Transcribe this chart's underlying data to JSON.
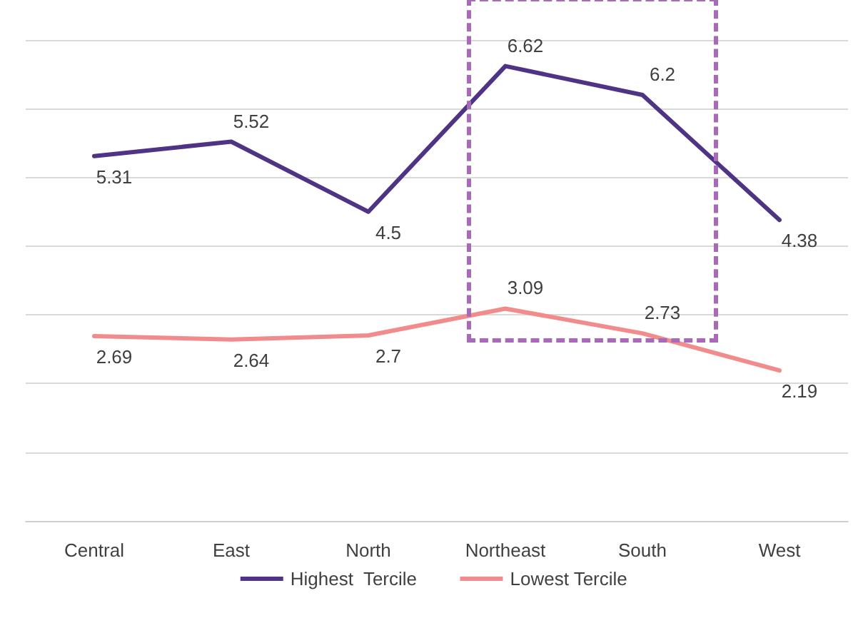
{
  "chart_data": {
    "type": "line",
    "categories": [
      "Central",
      "East",
      "North",
      "Northeast",
      "South",
      "West"
    ],
    "series": [
      {
        "name": "Highest  Tercile",
        "color": "#4f3385",
        "values": [
          5.31,
          5.52,
          4.5,
          6.62,
          6.2,
          4.38
        ]
      },
      {
        "name": "Lowest Tercile",
        "color": "#f28b8b",
        "values": [
          2.69,
          2.64,
          2.7,
          3.09,
          2.73,
          2.19
        ]
      }
    ],
    "ylim": [
      0,
      7
    ],
    "yticks": [
      {
        "value": 0,
        "label": null
      },
      {
        "value": 1,
        "label": null
      },
      {
        "value": 2,
        "label": null
      },
      {
        "value": 3,
        "label": null
      },
      {
        "value": 4,
        "label": null
      },
      {
        "value": 5,
        "label": null
      },
      {
        "value": 6,
        "label": null
      },
      {
        "value": 7,
        "label": null
      }
    ],
    "tick_labels": "x",
    "grid": "y",
    "legend": "bottom",
    "marker": "none",
    "line_style": "solid",
    "data_labels": true
  }
}
